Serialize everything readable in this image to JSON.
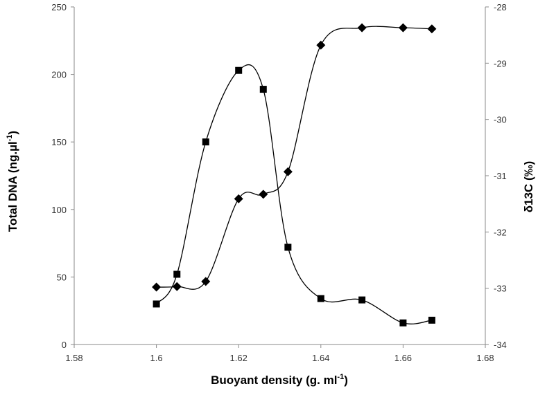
{
  "chart_data": {
    "type": "scatter",
    "xlabel": "Buoyant density (g. ml",
    "xlabel_sup": "-1",
    "xlabel_end": ")",
    "ylabel": "Total DNA (ng.µl",
    "ylabel_sup": "-1",
    "ylabel_end": ")",
    "y2label": "δ13C (‰)",
    "xlim": [
      1.58,
      1.68
    ],
    "ylim": [
      0,
      250
    ],
    "y2lim": [
      -34,
      -28
    ],
    "x_ticks": [
      "1.58",
      "1.6",
      "1.62",
      "1.64",
      "1.66",
      "1.68"
    ],
    "y_ticks": [
      "0",
      "50",
      "100",
      "150",
      "200",
      "250"
    ],
    "y2_ticks": [
      "-34",
      "-33",
      "-32",
      "-31",
      "-30",
      "-29",
      "-28"
    ],
    "grid": false,
    "legend": "none",
    "series": [
      {
        "axis": "left",
        "marker": "square",
        "x": [
          1.6,
          1.605,
          1.612,
          1.62,
          1.626,
          1.632,
          1.64,
          1.65,
          1.66,
          1.667
        ],
        "y": [
          30,
          52,
          150,
          203,
          189,
          72,
          34,
          33,
          16,
          18
        ]
      },
      {
        "axis": "right",
        "marker": "diamond",
        "x": [
          1.6,
          1.605,
          1.612,
          1.62,
          1.626,
          1.632,
          1.64,
          1.65,
          1.66,
          1.667
        ],
        "y": [
          -32.98,
          -32.97,
          -32.88,
          -31.41,
          -31.33,
          -30.93,
          -28.68,
          -28.37,
          -28.37,
          -28.39
        ]
      }
    ]
  }
}
